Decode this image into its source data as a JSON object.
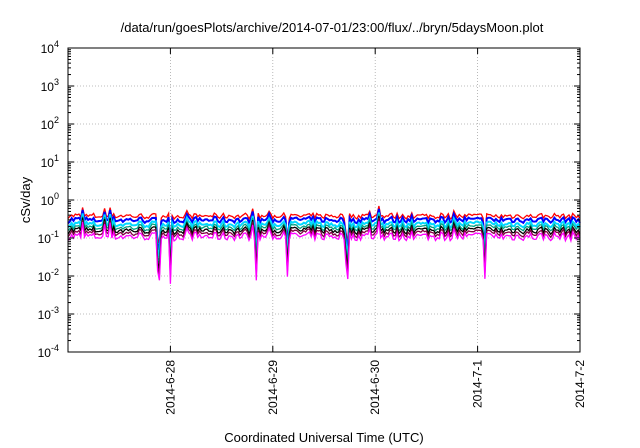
{
  "chart_data": {
    "type": "line",
    "title": "/data/run/goesPlots/archive/2014-07-01/23:00/flux/../bryn/5daysMoon.plot",
    "xlabel": "Coordinated Universal Time (UTC)",
    "ylabel": "cSv/day",
    "yscale": "log",
    "ylim": [
      0.0001,
      10000
    ],
    "xlim": [
      "2014-06-27T00:00",
      "2014-07-02T00:00"
    ],
    "grid": true,
    "yticks": [
      {
        "base": "10",
        "exp": "4"
      },
      {
        "base": "10",
        "exp": "3"
      },
      {
        "base": "10",
        "exp": "2"
      },
      {
        "base": "10",
        "exp": "1"
      },
      {
        "base": "10",
        "exp": "0"
      },
      {
        "base": "10",
        "exp": "-1"
      },
      {
        "base": "10",
        "exp": "-2"
      },
      {
        "base": "10",
        "exp": "-3"
      },
      {
        "base": "10",
        "exp": "-4"
      }
    ],
    "xticks": [
      "2014-6-28",
      "2014-6-29",
      "2014-6-30",
      "2014-7-1",
      "2014-7-2"
    ],
    "series_colors": [
      "#ff00ff",
      "#800040",
      "#ff0000",
      "#0000ff",
      "#00d8ff",
      "#00a080",
      "#000000",
      "#ff0000"
    ],
    "series": [
      {
        "color": "#ff0000",
        "level": 0.38
      },
      {
        "color": "#0000ff",
        "level": 0.3
      },
      {
        "color": "#00d8ff",
        "level": 0.23
      },
      {
        "color": "#00a080",
        "level": 0.19
      },
      {
        "color": "#000000",
        "level": 0.16
      },
      {
        "color": "#800040",
        "level": 0.135
      },
      {
        "color": "#ff00ff",
        "level": 0.11
      }
    ]
  }
}
